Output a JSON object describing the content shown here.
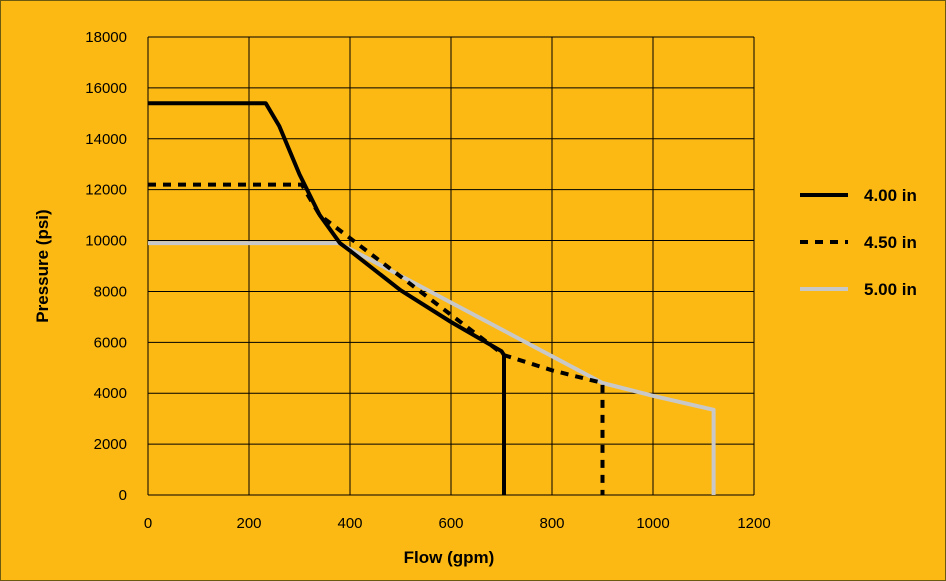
{
  "chart_data": {
    "type": "line",
    "xlabel": "Flow (gpm)",
    "ylabel": "Pressure (psi)",
    "xlim": [
      0,
      1200
    ],
    "ylim": [
      0,
      18000
    ],
    "xticks": [
      0,
      200,
      400,
      600,
      800,
      1000,
      1200
    ],
    "yticks": [
      0,
      2000,
      4000,
      6000,
      8000,
      10000,
      12000,
      14000,
      16000,
      18000
    ],
    "grid": true,
    "legend_position": "right",
    "background_color": "#FDB913",
    "series": [
      {
        "name": "4.00 in",
        "color": "#000000",
        "dash": "solid",
        "points": [
          [
            0,
            15400
          ],
          [
            233,
            15400
          ],
          [
            260,
            14500
          ],
          [
            300,
            12600
          ],
          [
            340,
            11000
          ],
          [
            380,
            9900
          ],
          [
            400,
            9600
          ],
          [
            500,
            8050
          ],
          [
            600,
            6800
          ],
          [
            700,
            5650
          ],
          [
            705,
            5500
          ],
          [
            705,
            0
          ]
        ]
      },
      {
        "name": "4.50 in",
        "color": "#000000",
        "dash": "dotted",
        "points": [
          [
            0,
            12200
          ],
          [
            305,
            12200
          ],
          [
            310,
            12000
          ],
          [
            340,
            11000
          ],
          [
            705,
            5500
          ],
          [
            800,
            4900
          ],
          [
            900,
            4400
          ],
          [
            900,
            0
          ]
        ]
      },
      {
        "name": "5.00 in",
        "color": "#C8C8C8",
        "dash": "solid",
        "points": [
          [
            0,
            9900
          ],
          [
            378,
            9900
          ],
          [
            380,
            9880
          ],
          [
            900,
            4400
          ],
          [
            1000,
            3900
          ],
          [
            1120,
            3350
          ],
          [
            1120,
            0
          ]
        ]
      }
    ]
  }
}
